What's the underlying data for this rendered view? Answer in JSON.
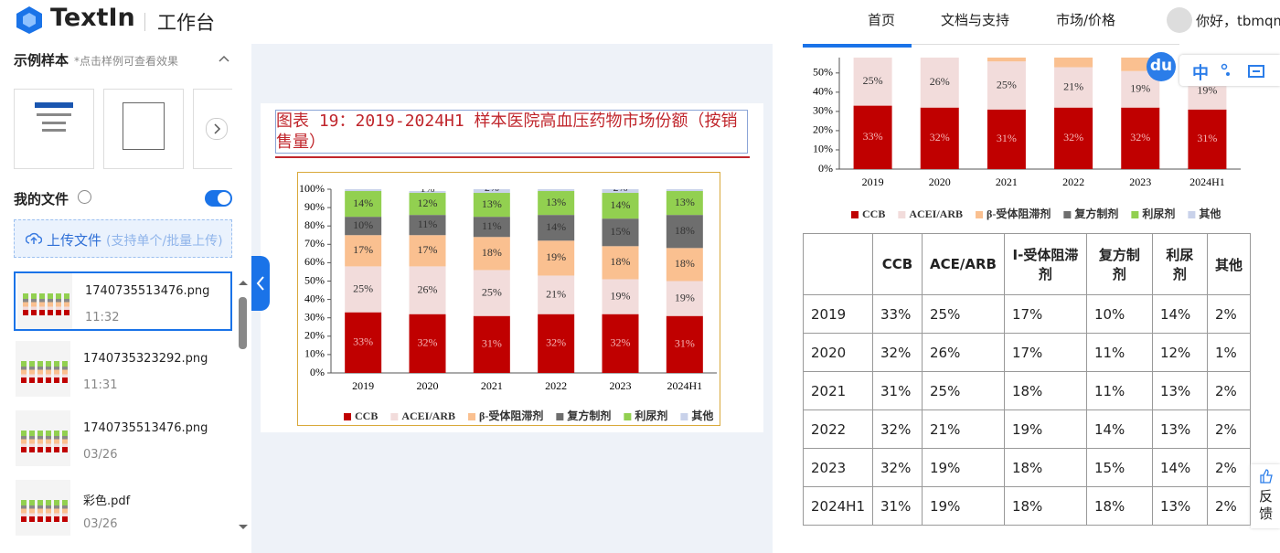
{
  "header": {
    "logo": "TextIn",
    "workspace": "工作台",
    "nav": [
      "首页",
      "文档与支持",
      "市场/价格"
    ],
    "user": "你好，tbmqm"
  },
  "sidebar": {
    "samples_title": "示例样本",
    "samples_hint": "*点击样例可查看效果",
    "my_files": "我的文件",
    "upload": "上传文件",
    "upload_hint": "(支持单个/批量上传)",
    "files": [
      {
        "name": "1740735513476.png",
        "time": "11:32"
      },
      {
        "name": "1740735323292.png",
        "time": "11:31"
      },
      {
        "name": "1740735513476.png",
        "time": "03/26"
      },
      {
        "name": "彩色.pdf",
        "time": "03/26"
      }
    ]
  },
  "preview": {
    "title": "图表 19：2019-2024H1 样本医院高血压药物市场份额（按销售量）",
    "chart": {
      "type": "bar",
      "stacked": true,
      "categories": [
        "2019",
        "2020",
        "2021",
        "2022",
        "2023",
        "2024H1"
      ],
      "series": [
        {
          "name": "CCB",
          "color": "#c00000",
          "values": [
            33,
            32,
            31,
            32,
            32,
            31
          ],
          "value_labels": [
            "33%",
            "32%",
            "31%",
            "32%",
            "32%",
            "31%"
          ]
        },
        {
          "name": "ACEI/ARB",
          "color": "#f2dcdb",
          "values": [
            25,
            26,
            25,
            21,
            19,
            19
          ],
          "value_labels": [
            "25%",
            "26%",
            "25%",
            "21%",
            "19%",
            "19%"
          ]
        },
        {
          "name": "β-受体阻滞剂",
          "color": "#fac090",
          "values": [
            17,
            17,
            18,
            19,
            18,
            18
          ],
          "value_labels": [
            "17%",
            "17%",
            "18%",
            "19%",
            "18%",
            "18%"
          ]
        },
        {
          "name": "复方制剂",
          "color": "#6e6e6e",
          "values": [
            10,
            11,
            11,
            14,
            15,
            18
          ],
          "value_labels": [
            "10%",
            "11%",
            "11%",
            "14%",
            "15%",
            "18%"
          ]
        },
        {
          "name": "利尿剂",
          "color": "#92d050",
          "values": [
            14,
            12,
            13,
            13,
            14,
            13
          ],
          "value_labels": [
            "14%",
            "12%",
            "13%",
            "13%",
            "14%",
            "13%"
          ]
        },
        {
          "name": "其他",
          "color": "#c9d2ea",
          "values": [
            2,
            1,
            2,
            2,
            2,
            2
          ],
          "value_labels": [
            "2%",
            "1%",
            "2%",
            "2%",
            "2%",
            "2%"
          ]
        }
      ],
      "ylim": [
        0,
        100
      ],
      "yticks": [
        {
          "value": 0,
          "label": "0%"
        },
        {
          "value": 10,
          "label": "10%"
        },
        {
          "value": 20,
          "label": "20%"
        },
        {
          "value": 30,
          "label": "30%"
        },
        {
          "value": 40,
          "label": "40%"
        },
        {
          "value": 50,
          "label": "50%"
        },
        {
          "value": 60,
          "label": "60%"
        },
        {
          "value": 70,
          "label": "70%"
        },
        {
          "value": 80,
          "label": "80%"
        },
        {
          "value": 90,
          "label": "90%"
        },
        {
          "value": 100,
          "label": "100%"
        }
      ]
    }
  },
  "result": {
    "chart": {
      "type": "bar",
      "ylim": [
        0,
        58
      ],
      "yticks": [
        {
          "value": 0,
          "label": "0%"
        },
        {
          "value": 10,
          "label": "10%"
        },
        {
          "value": 20,
          "label": "20%"
        },
        {
          "value": 30,
          "label": "30%"
        },
        {
          "value": 40,
          "label": "40%"
        },
        {
          "value": 50,
          "label": "50%"
        }
      ]
    },
    "table": {
      "headers": [
        "CCB",
        "ACE/ARB",
        "I-受体阻滞剂",
        "复方制剂",
        "利尿剂",
        "其他"
      ],
      "rows": [
        [
          "2019",
          "33%",
          "25%",
          "17%",
          "10%",
          "14%",
          "2%"
        ],
        [
          "2020",
          "32%",
          "26%",
          "17%",
          "11%",
          "12%",
          "1%"
        ],
        [
          "2021",
          "31%",
          "25%",
          "18%",
          "11%",
          "13%",
          "2%"
        ],
        [
          "2022",
          "32%",
          "21%",
          "19%",
          "14%",
          "13%",
          "2%"
        ],
        [
          "2023",
          "32%",
          "19%",
          "18%",
          "15%",
          "14%",
          "2%"
        ],
        [
          "2024H1",
          "31%",
          "19%",
          "18%",
          "18%",
          "13%",
          "2%"
        ]
      ]
    },
    "toolbar": {
      "logo": "du",
      "lang": "中"
    },
    "feedback": "反馈"
  }
}
